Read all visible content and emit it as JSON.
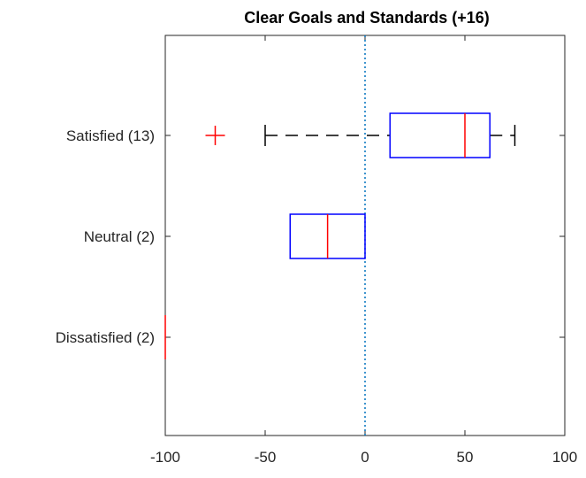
{
  "chart_data": {
    "type": "boxplot",
    "orientation": "horizontal",
    "title": "Clear Goals and Standards (+16)",
    "xlabel": "",
    "ylabel": "",
    "xlim": [
      -100,
      100
    ],
    "xticks": [
      -100,
      -50,
      0,
      50,
      100
    ],
    "xtick_labels": [
      "-100",
      "-50",
      "0",
      "50",
      "100"
    ],
    "reference_line": {
      "x": 0,
      "style": "dotted",
      "color": "#0072BD"
    },
    "categories": [
      "Satisfied (13)",
      "Neutral (2)",
      "Dissatisfied (2)"
    ],
    "boxes": [
      {
        "label": "Satisfied (13)",
        "whisker_low": -50,
        "q1": 12.5,
        "median": 50,
        "q3": 62.5,
        "whisker_high": 75,
        "outliers": [
          -75
        ]
      },
      {
        "label": "Neutral (2)",
        "whisker_low": -37.5,
        "q1": -37.5,
        "median": -18.75,
        "q3": 0,
        "whisker_high": 0,
        "outliers": []
      },
      {
        "label": "Dissatisfied (2)",
        "whisker_low": -100,
        "q1": -100,
        "median": -100,
        "q3": -100,
        "whisker_high": -100,
        "outliers": []
      }
    ],
    "colors": {
      "box": "#0000FF",
      "median": "#FF0000",
      "whisker": "#000000",
      "outlier": "#FF0000",
      "axes": "#262626"
    }
  }
}
